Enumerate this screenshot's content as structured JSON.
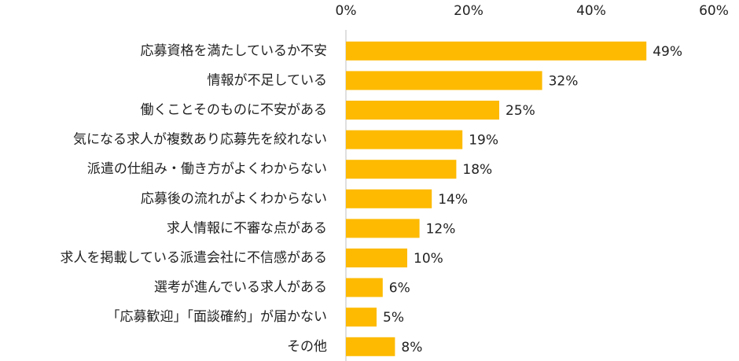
{
  "chart_data": {
    "type": "bar",
    "orientation": "horizontal",
    "categories": [
      "応募資格を満たしているか不安",
      "情報が不足している",
      "働くことそのものに不安がある",
      "気になる求人が複数あり応募先を絞れない",
      "派遣の仕組み・働き方がよくわからない",
      "応募後の流れがよくわからない",
      "求人情報に不審な点がある",
      "求人を掲載している派遣会社に不信感がある",
      "選考が進んでいる求人がある",
      "「応募歓迎」「面談確約」が届かない",
      "その他"
    ],
    "values": [
      49,
      32,
      25,
      19,
      18,
      14,
      12,
      10,
      6,
      5,
      8
    ],
    "value_labels": [
      "49%",
      "32%",
      "25%",
      "19%",
      "18%",
      "14%",
      "12%",
      "10%",
      "6%",
      "5%",
      "8%"
    ],
    "color": "#FDBA00",
    "xlim": [
      0,
      60
    ],
    "xticks": [
      {
        "value": 0,
        "label": "0%"
      },
      {
        "value": 20,
        "label": "20%"
      },
      {
        "value": 40,
        "label": "40%"
      },
      {
        "value": 60,
        "label": "60%"
      }
    ],
    "grid": false
  }
}
